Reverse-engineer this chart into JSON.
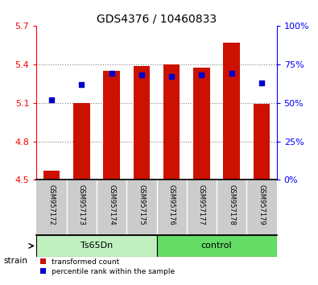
{
  "title": "GDS4376 / 10460833",
  "samples": [
    "GSM957172",
    "GSM957173",
    "GSM957174",
    "GSM957175",
    "GSM957176",
    "GSM957177",
    "GSM957178",
    "GSM957179"
  ],
  "red_values": [
    4.57,
    5.1,
    5.35,
    5.385,
    5.401,
    5.372,
    5.565,
    5.09
  ],
  "blue_values": [
    52,
    62,
    69,
    68,
    67,
    68,
    69,
    63
  ],
  "ylim_left": [
    4.5,
    5.7
  ],
  "ylim_right": [
    0,
    100
  ],
  "yticks_left": [
    4.5,
    4.8,
    5.1,
    5.4,
    5.7
  ],
  "yticks_right": [
    0,
    25,
    50,
    75,
    100
  ],
  "groups": [
    {
      "label": "Ts65Dn",
      "indices": [
        0,
        1,
        2,
        3
      ],
      "color": "#c0f0c0"
    },
    {
      "label": "control",
      "indices": [
        4,
        5,
        6,
        7
      ],
      "color": "#66dd66"
    }
  ],
  "bar_color": "#cc1100",
  "dot_color": "#0000cc",
  "bar_bottom": 4.5,
  "background_color": "#ffffff",
  "tick_label_bg": "#cccccc",
  "strain_label": "strain",
  "legend_red": "transformed count",
  "legend_blue": "percentile rank within the sample",
  "title_fontsize": 10,
  "tick_fontsize": 8,
  "sample_fontsize": 6,
  "group_fontsize": 8
}
